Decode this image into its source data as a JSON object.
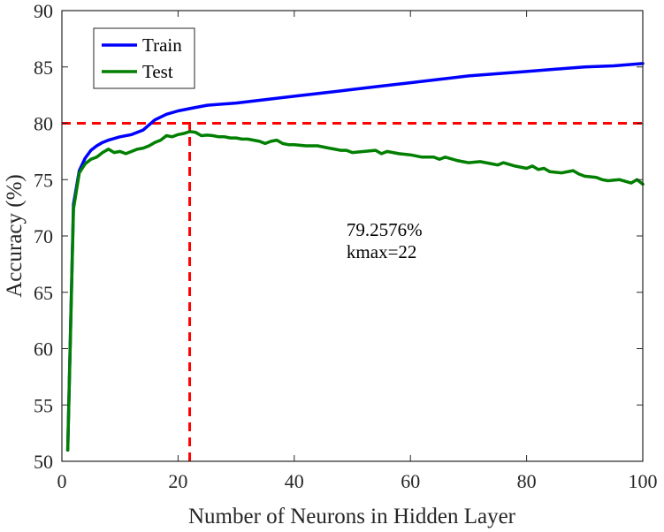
{
  "chart_data": {
    "type": "line",
    "xlabel": "Number of Neurons in Hidden Layer",
    "ylabel": "Accuracy (%)",
    "xlim": [
      0,
      100
    ],
    "ylim": [
      50,
      90
    ],
    "xticks": [
      0,
      20,
      40,
      60,
      80,
      100
    ],
    "yticks": [
      50,
      55,
      60,
      65,
      70,
      75,
      80,
      85,
      90
    ],
    "legend_position": "top-left",
    "series": [
      {
        "name": "Train",
        "color": "#0000ff",
        "x": [
          1,
          2,
          3,
          4,
          5,
          6,
          7,
          8,
          10,
          12,
          14,
          16,
          18,
          20,
          22,
          25,
          30,
          35,
          40,
          45,
          50,
          55,
          60,
          65,
          70,
          75,
          80,
          85,
          90,
          95,
          100
        ],
        "values": [
          51.0,
          72.8,
          75.8,
          76.9,
          77.6,
          78.0,
          78.3,
          78.5,
          78.8,
          79.0,
          79.4,
          80.3,
          80.8,
          81.1,
          81.3,
          81.6,
          81.8,
          82.1,
          82.4,
          82.7,
          83.0,
          83.3,
          83.6,
          83.9,
          84.2,
          84.4,
          84.6,
          84.8,
          85.0,
          85.1,
          85.3
        ]
      },
      {
        "name": "Test",
        "color": "#007f00",
        "x": [
          1,
          2,
          3,
          4,
          5,
          6,
          7,
          8,
          9,
          10,
          11,
          12,
          13,
          14,
          15,
          16,
          17,
          18,
          19,
          20,
          21,
          22,
          23,
          24,
          25,
          26,
          27,
          28,
          29,
          30,
          31,
          32,
          33,
          34,
          35,
          36,
          37,
          38,
          39,
          40,
          42,
          44,
          46,
          48,
          49,
          50,
          52,
          54,
          55,
          56,
          58,
          60,
          62,
          64,
          65,
          66,
          68,
          70,
          72,
          74,
          75,
          76,
          78,
          80,
          81,
          82,
          83,
          84,
          86,
          88,
          89,
          90,
          92,
          93,
          94,
          96,
          98,
          99,
          100
        ],
        "values": [
          51.0,
          72.4,
          75.6,
          76.4,
          76.8,
          77.0,
          77.4,
          77.7,
          77.4,
          77.5,
          77.3,
          77.5,
          77.7,
          77.8,
          78.0,
          78.3,
          78.5,
          78.9,
          78.8,
          79.0,
          79.1,
          79.26,
          79.2,
          78.9,
          78.95,
          78.9,
          78.8,
          78.8,
          78.7,
          78.7,
          78.6,
          78.6,
          78.5,
          78.4,
          78.2,
          78.4,
          78.5,
          78.2,
          78.1,
          78.1,
          78.0,
          78.0,
          77.8,
          77.6,
          77.6,
          77.4,
          77.5,
          77.6,
          77.3,
          77.5,
          77.3,
          77.2,
          77.0,
          77.0,
          76.8,
          77.0,
          76.7,
          76.5,
          76.6,
          76.4,
          76.3,
          76.5,
          76.2,
          76.0,
          76.2,
          75.9,
          76.0,
          75.7,
          75.6,
          75.8,
          75.5,
          75.3,
          75.2,
          75.0,
          74.9,
          75.0,
          74.7,
          75.0,
          74.6
        ]
      }
    ],
    "reference_lines": [
      {
        "orientation": "horizontal",
        "value": 80,
        "color": "#ff0000",
        "style": "dashed"
      },
      {
        "orientation": "vertical",
        "value": 22,
        "color": "#ff0000",
        "style": "dashed"
      }
    ],
    "annotation": {
      "line1": "79.2576%",
      "line2": "kmax=22",
      "x": 49,
      "y": 70
    }
  }
}
